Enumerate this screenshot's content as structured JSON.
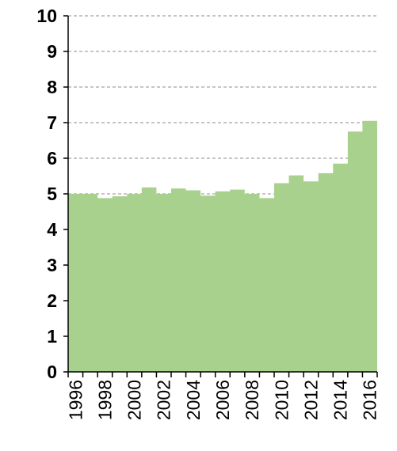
{
  "chart_data": {
    "type": "area",
    "title": "",
    "xlabel": "",
    "ylabel": "",
    "x": [
      1996,
      1997,
      1998,
      1999,
      2000,
      2001,
      2002,
      2003,
      2004,
      2005,
      2006,
      2007,
      2008,
      2009,
      2010,
      2011,
      2012,
      2013,
      2014,
      2015,
      2016
    ],
    "values": [
      5.0,
      5.0,
      4.88,
      4.93,
      5.0,
      5.18,
      5.0,
      5.15,
      5.1,
      4.95,
      5.07,
      5.12,
      5.0,
      4.88,
      5.3,
      5.52,
      5.35,
      5.58,
      5.85,
      6.75,
      7.05
    ],
    "ylim": [
      0,
      10
    ],
    "yticks": [
      0,
      1,
      2,
      3,
      4,
      5,
      6,
      7,
      8,
      9,
      10
    ],
    "xtick_labels": [
      "1996",
      "1998",
      "2000",
      "2002",
      "2004",
      "2006",
      "2008",
      "2010",
      "2012",
      "2014",
      "2016"
    ],
    "grid": true,
    "legend": "none",
    "colors": {
      "fill": "#a9d18e",
      "grid": "#8c8c8c",
      "axis": "#000000"
    }
  }
}
